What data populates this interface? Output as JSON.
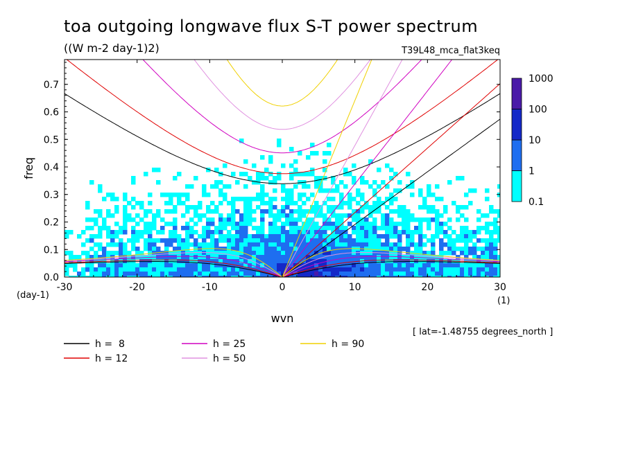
{
  "chart_data": {
    "type": "heatmap",
    "title": "toa outgoing longwave flux S-T power spectrum",
    "subtitle": "((W m-2 day-1)2)",
    "run_label": "T39L48_mca_flat3keq",
    "xlabel": "wvn",
    "ylabel": "freq",
    "x_unit": "(1)",
    "y_unit": "(day-1)",
    "xlim": [
      -30,
      30
    ],
    "ylim": [
      0,
      0.79
    ],
    "xticks": [
      "-30",
      "-20",
      "-10",
      "0",
      "10",
      "20",
      "30"
    ],
    "yticks": [
      "0.0",
      "0.1",
      "0.2",
      "0.3",
      "0.4",
      "0.5",
      "0.6",
      "0.7"
    ],
    "lat_note": "[ lat=-1.48755 degrees_north ]",
    "colorbar": {
      "levels": [
        "0.1",
        "1",
        "10",
        "100",
        "1000"
      ],
      "colors": [
        "#00ffff",
        "#1e6ef0",
        "#1428c8",
        "#4a1aa8"
      ]
    },
    "dispersion_curves": [
      {
        "label": "h =  8",
        "color": "#000000"
      },
      {
        "label": "h = 12",
        "color": "#e00000"
      },
      {
        "label": "h = 25",
        "color": "#d000c0"
      },
      {
        "label": "h = 50",
        "color": "#e090e0"
      },
      {
        "label": "h = 90",
        "color": "#f0d000"
      }
    ]
  }
}
